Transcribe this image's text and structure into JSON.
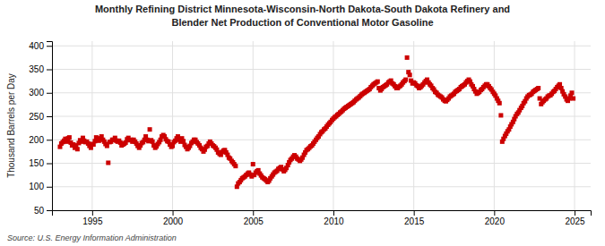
{
  "chart_data": {
    "type": "scatter",
    "title": "Monthly Refining District Minnesota-Wisconsin-North Dakota-South Dakota Refinery and",
    "subtitle": "Blender Net Production of Conventional Motor Gasoline",
    "ylabel": "Thousand Barrels per Day",
    "annotations": [
      "Source: U.S. Energy Information Administration"
    ],
    "color": "#cc0000",
    "marker": "square",
    "grid": true,
    "xlim": [
      1992.5,
      2026.0
    ],
    "ylim": [
      50,
      410
    ],
    "xticks": [
      1995,
      2000,
      2005,
      2010,
      2015,
      2020,
      2025
    ],
    "yticks": [
      50,
      100,
      150,
      200,
      250,
      300,
      350,
      400
    ],
    "x": [
      1993.0,
      1993.08,
      1993.17,
      1993.25,
      1993.33,
      1993.42,
      1993.5,
      1993.58,
      1993.67,
      1993.75,
      1993.83,
      1993.92,
      1994.0,
      1994.08,
      1994.17,
      1994.25,
      1994.33,
      1994.42,
      1994.5,
      1994.58,
      1994.67,
      1994.75,
      1994.83,
      1994.92,
      1995.0,
      1995.08,
      1995.17,
      1995.25,
      1995.33,
      1995.42,
      1995.5,
      1995.58,
      1995.67,
      1995.75,
      1995.83,
      1995.92,
      1996.0,
      1996.08,
      1996.17,
      1996.25,
      1996.33,
      1996.42,
      1996.5,
      1996.58,
      1996.67,
      1996.75,
      1996.83,
      1996.92,
      1997.0,
      1997.08,
      1997.17,
      1997.25,
      1997.33,
      1997.42,
      1997.5,
      1997.58,
      1997.67,
      1997.75,
      1997.83,
      1997.92,
      1998.0,
      1998.08,
      1998.17,
      1998.25,
      1998.33,
      1998.42,
      1998.5,
      1998.58,
      1998.67,
      1998.75,
      1998.83,
      1998.92,
      1999.0,
      1999.08,
      1999.17,
      1999.25,
      1999.33,
      1999.42,
      1999.5,
      1999.58,
      1999.67,
      1999.75,
      1999.83,
      1999.92,
      2000.0,
      2000.08,
      2000.17,
      2000.25,
      2000.33,
      2000.42,
      2000.5,
      2000.58,
      2000.67,
      2000.75,
      2000.83,
      2000.92,
      2001.0,
      2001.08,
      2001.17,
      2001.25,
      2001.33,
      2001.42,
      2001.5,
      2001.58,
      2001.67,
      2001.75,
      2001.83,
      2001.92,
      2002.0,
      2002.08,
      2002.17,
      2002.25,
      2002.33,
      2002.42,
      2002.5,
      2002.58,
      2002.67,
      2002.75,
      2002.83,
      2002.92,
      2003.0,
      2003.08,
      2003.17,
      2003.25,
      2003.33,
      2003.42,
      2003.5,
      2003.58,
      2003.67,
      2003.75,
      2003.83,
      2003.92,
      2004.0,
      2004.08,
      2004.17,
      2004.25,
      2004.33,
      2004.42,
      2004.5,
      2004.58,
      2004.67,
      2004.75,
      2004.83,
      2004.92,
      2005.0,
      2005.08,
      2005.17,
      2005.25,
      2005.33,
      2005.42,
      2005.5,
      2005.58,
      2005.67,
      2005.75,
      2005.83,
      2005.92,
      2006.0,
      2006.08,
      2006.17,
      2006.25,
      2006.33,
      2006.42,
      2006.5,
      2006.58,
      2006.67,
      2006.75,
      2006.83,
      2006.92,
      2007.0,
      2007.08,
      2007.17,
      2007.25,
      2007.33,
      2007.42,
      2007.5,
      2007.58,
      2007.67,
      2007.75,
      2007.83,
      2007.92,
      2008.0,
      2008.08,
      2008.17,
      2008.25,
      2008.33,
      2008.42,
      2008.5,
      2008.58,
      2008.67,
      2008.75,
      2008.83,
      2008.92,
      2009.0,
      2009.08,
      2009.17,
      2009.25,
      2009.33,
      2009.42,
      2009.5,
      2009.58,
      2009.67,
      2009.75,
      2009.83,
      2009.92,
      2010.0,
      2010.08,
      2010.17,
      2010.25,
      2010.33,
      2010.42,
      2010.5,
      2010.58,
      2010.67,
      2010.75,
      2010.83,
      2010.92,
      2011.0,
      2011.08,
      2011.17,
      2011.25,
      2011.33,
      2011.42,
      2011.5,
      2011.58,
      2011.67,
      2011.75,
      2011.83,
      2011.92,
      2012.0,
      2012.08,
      2012.17,
      2012.25,
      2012.33,
      2012.42,
      2012.5,
      2012.58,
      2012.67,
      2012.75,
      2012.83,
      2012.92,
      2013.0,
      2013.08,
      2013.17,
      2013.25,
      2013.33,
      2013.42,
      2013.5,
      2013.58,
      2013.67,
      2013.75,
      2013.83,
      2013.92,
      2014.0,
      2014.08,
      2014.17,
      2014.25,
      2014.33,
      2014.42,
      2014.5,
      2014.58,
      2014.67,
      2014.75,
      2014.83,
      2014.92,
      2015.0,
      2015.08,
      2015.17,
      2015.25,
      2015.33,
      2015.42,
      2015.5,
      2015.58,
      2015.67,
      2015.75,
      2015.83,
      2015.92,
      2016.0,
      2016.08,
      2016.17,
      2016.25,
      2016.33,
      2016.42,
      2016.5,
      2016.58,
      2016.67,
      2016.75,
      2016.83,
      2016.92,
      2017.0,
      2017.08,
      2017.17,
      2017.25,
      2017.33,
      2017.42,
      2017.5,
      2017.58,
      2017.67,
      2017.75,
      2017.83,
      2017.92,
      2018.0,
      2018.08,
      2018.17,
      2018.25,
      2018.33,
      2018.42,
      2018.5,
      2018.58,
      2018.67,
      2018.75,
      2018.83,
      2018.92,
      2019.0,
      2019.08,
      2019.17,
      2019.25,
      2019.33,
      2019.42,
      2019.5,
      2019.58,
      2019.67,
      2019.75,
      2019.83,
      2019.92,
      2020.0,
      2020.08,
      2020.17,
      2020.25,
      2020.33,
      2020.42,
      2020.5,
      2020.58,
      2020.67,
      2020.75,
      2020.83,
      2020.92,
      2021.0,
      2021.08,
      2021.17,
      2021.25,
      2021.33,
      2021.42,
      2021.5,
      2021.58,
      2021.67,
      2021.75,
      2021.83,
      2021.92,
      2022.0,
      2022.08,
      2022.17,
      2022.25,
      2022.33,
      2022.42,
      2022.5,
      2022.58,
      2022.67,
      2022.75,
      2022.83,
      2022.92,
      2023.0,
      2023.08,
      2023.17,
      2023.25,
      2023.33,
      2023.42,
      2023.5,
      2023.58,
      2023.67,
      2023.75,
      2023.83,
      2023.92,
      2024.0,
      2024.08,
      2024.17,
      2024.25,
      2024.33,
      2024.42,
      2024.5,
      2024.58,
      2024.67,
      2024.75,
      2024.83,
      2024.92
    ],
    "values": [
      185,
      192,
      195,
      198,
      202,
      196,
      203,
      205,
      194,
      188,
      190,
      183,
      188,
      180,
      193,
      199,
      196,
      204,
      198,
      195,
      196,
      192,
      187,
      183,
      191,
      190,
      197,
      205,
      202,
      198,
      203,
      207,
      200,
      196,
      191,
      187,
      151,
      195,
      196,
      200,
      200,
      204,
      198,
      196,
      198,
      194,
      188,
      190,
      192,
      194,
      201,
      204,
      199,
      200,
      196,
      200,
      196,
      192,
      187,
      183,
      188,
      193,
      195,
      200,
      207,
      200,
      197,
      222,
      199,
      196,
      188,
      183,
      186,
      191,
      195,
      200,
      207,
      210,
      207,
      201,
      197,
      196,
      190,
      185,
      187,
      195,
      198,
      203,
      207,
      200,
      196,
      203,
      197,
      189,
      185,
      180,
      183,
      187,
      193,
      196,
      200,
      200,
      195,
      192,
      188,
      183,
      180,
      175,
      179,
      185,
      187,
      192,
      196,
      192,
      188,
      186,
      183,
      179,
      173,
      170,
      168,
      174,
      177,
      178,
      173,
      168,
      162,
      160,
      155,
      152,
      148,
      144,
      100,
      107,
      110,
      114,
      118,
      120,
      122,
      125,
      128,
      130,
      126,
      122,
      148,
      125,
      130,
      133,
      135,
      128,
      124,
      120,
      118,
      116,
      113,
      110,
      113,
      118,
      122,
      126,
      130,
      132,
      134,
      138,
      140,
      142,
      137,
      133,
      136,
      140,
      146,
      152,
      157,
      160,
      164,
      167,
      164,
      160,
      158,
      155,
      158,
      162,
      168,
      173,
      178,
      180,
      183,
      186,
      188,
      192,
      196,
      200,
      204,
      207,
      212,
      216,
      218,
      222,
      224,
      228,
      232,
      235,
      238,
      242,
      245,
      248,
      250,
      253,
      255,
      258,
      260,
      263,
      266,
      268,
      270,
      272,
      274,
      276,
      278,
      280,
      283,
      286,
      288,
      290,
      293,
      296,
      298,
      300,
      302,
      304,
      306,
      308,
      312,
      315,
      318,
      320,
      322,
      324,
      310,
      305,
      308,
      312,
      314,
      316,
      318,
      322,
      324,
      326,
      320,
      318,
      314,
      310,
      310,
      313,
      315,
      318,
      322,
      325,
      328,
      375,
      344,
      338,
      326,
      320,
      322,
      320,
      316,
      314,
      310,
      312,
      315,
      318,
      322,
      325,
      328,
      322,
      318,
      315,
      310,
      307,
      302,
      300,
      296,
      294,
      292,
      290,
      286,
      283,
      282,
      285,
      288,
      292,
      294,
      296,
      298,
      302,
      304,
      306,
      308,
      312,
      314,
      316,
      318,
      322,
      325,
      328,
      324,
      318,
      314,
      308,
      303,
      298,
      300,
      302,
      306,
      308,
      312,
      315,
      318,
      318,
      314,
      310,
      307,
      302,
      298,
      294,
      288,
      283,
      278,
      252,
      196,
      202,
      208,
      213,
      218,
      222,
      228,
      233,
      238,
      244,
      250,
      255,
      258,
      263,
      268,
      272,
      278,
      282,
      288,
      292,
      295,
      296,
      298,
      302,
      304,
      306,
      308,
      310,
      288,
      276,
      280,
      283,
      286,
      288,
      292,
      294,
      295,
      298,
      302,
      304,
      308,
      312,
      315,
      318,
      310,
      303,
      297,
      292,
      286,
      283,
      288,
      294,
      300,
      288
    ]
  }
}
